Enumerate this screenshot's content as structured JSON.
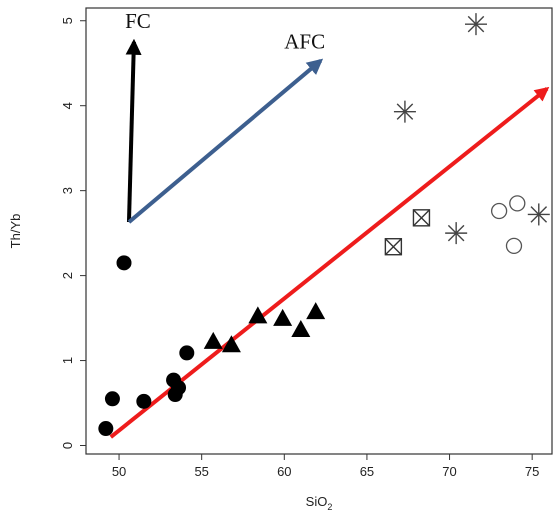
{
  "chart_data": {
    "type": "scatter",
    "title": "",
    "xlabel": "SiO",
    "xlabel_subscript": "2",
    "ylabel": "Th/Yb",
    "xlim": [
      48,
      76.2
    ],
    "ylim": [
      -0.1,
      5.15
    ],
    "xticks": [
      50,
      55,
      60,
      65,
      70,
      75
    ],
    "yticks": [
      0,
      1,
      2,
      3,
      4,
      5
    ],
    "grid": false,
    "series": [
      {
        "marker": "filled-circle",
        "points": [
          [
            49.2,
            0.2
          ],
          [
            49.6,
            0.55
          ],
          [
            50.3,
            2.15
          ],
          [
            51.5,
            0.52
          ],
          [
            53.3,
            0.77
          ],
          [
            53.4,
            0.6
          ],
          [
            53.6,
            0.68
          ],
          [
            54.1,
            1.09
          ]
        ]
      },
      {
        "marker": "filled-triangle",
        "points": [
          [
            55.7,
            1.22
          ],
          [
            56.8,
            1.18
          ],
          [
            58.4,
            1.52
          ],
          [
            59.9,
            1.49
          ],
          [
            61.0,
            1.36
          ],
          [
            61.9,
            1.57
          ]
        ]
      },
      {
        "marker": "boxed-x",
        "points": [
          [
            66.6,
            2.34
          ],
          [
            68.3,
            2.68
          ]
        ]
      },
      {
        "marker": "asterisk",
        "points": [
          [
            67.3,
            3.93
          ],
          [
            70.4,
            2.5
          ],
          [
            71.6,
            4.96
          ],
          [
            75.4,
            2.72
          ]
        ]
      },
      {
        "marker": "open-circle",
        "points": [
          [
            73.0,
            2.76
          ],
          [
            73.9,
            2.35
          ],
          [
            74.1,
            2.85
          ]
        ]
      }
    ],
    "arrows": [
      {
        "label": "FC",
        "from": [
          50.6,
          2.63
        ],
        "to": [
          50.9,
          4.75
        ],
        "color": "#000000"
      },
      {
        "label": "AFC",
        "from": [
          50.6,
          2.63
        ],
        "to": [
          62.2,
          4.53
        ],
        "color": "#3d5f8f"
      },
      {
        "label": "",
        "from": [
          49.5,
          0.1
        ],
        "to": [
          75.9,
          4.2
        ],
        "color": "#ee1c1c"
      }
    ]
  }
}
